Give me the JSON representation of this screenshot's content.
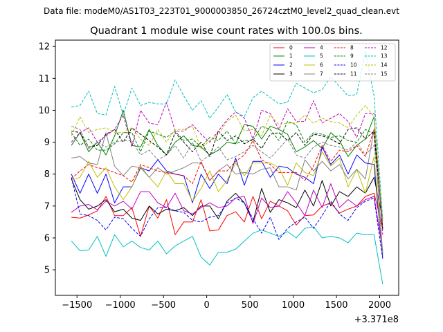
{
  "suptitle": "Data file: modeM0/AS1T03_223T01_9000003850_26724cztM0_level2_quad_clean.evt",
  "chart_data": {
    "type": "line",
    "title": "Quadrant 1 module wise count rates with 100.0s bins.",
    "xlabel": "",
    "ylabel": "",
    "x_offset_label": "+3.371e8",
    "xlim": [
      -1750,
      2220
    ],
    "ylim": [
      4.2,
      12.2
    ],
    "xticks": [
      -1500,
      -1000,
      -500,
      0,
      500,
      1000,
      1500,
      2000
    ],
    "xtick_labels": [
      "−1500",
      "−1000",
      "−500",
      "0",
      "500",
      "1000",
      "1500",
      "2000"
    ],
    "yticks": [
      5,
      6,
      7,
      8,
      9,
      10,
      11,
      12
    ],
    "ytick_labels": [
      "5",
      "6",
      "7",
      "8",
      "9",
      "10",
      "11",
      "12"
    ],
    "grid": false,
    "legend_position": "top-right",
    "x": [
      -1565,
      -1465,
      -1365,
      -1265,
      -1165,
      -1065,
      -965,
      -865,
      -765,
      -665,
      -565,
      -465,
      -365,
      -265,
      -165,
      -65,
      35,
      135,
      235,
      335,
      435,
      535,
      635,
      735,
      835,
      935,
      1035,
      1135,
      1235,
      1335,
      1435,
      1535,
      1635,
      1735,
      1835,
      1935,
      2035
    ],
    "series": [
      {
        "name": "0",
        "color": "#ff0000",
        "dash": "solid",
        "values": [
          6.65,
          6.62,
          6.72,
          6.85,
          7.3,
          6.7,
          6.7,
          6.95,
          6.05,
          7.0,
          6.62,
          7.2,
          6.1,
          6.5,
          6.5,
          7.2,
          6.22,
          6.25,
          6.7,
          6.82,
          6.5,
          7.3,
          6.6,
          7.15,
          7.0,
          6.85,
          6.4,
          6.7,
          6.72,
          7.0,
          7.1,
          6.78,
          6.9,
          7.0,
          7.3,
          7.4,
          6.3
        ]
      },
      {
        "name": "1",
        "color": "#008000",
        "dash": "solid",
        "values": [
          8.9,
          9.3,
          8.7,
          9.0,
          8.6,
          9.2,
          10.0,
          8.9,
          8.85,
          9.4,
          8.9,
          8.6,
          9.0,
          9.2,
          8.9,
          8.85,
          8.6,
          8.75,
          9.0,
          8.95,
          9.55,
          9.5,
          9.1,
          9.5,
          9.4,
          9.25,
          8.7,
          8.85,
          9.05,
          8.8,
          9.3,
          9.05,
          8.55,
          8.9,
          9.1,
          9.8,
          6.3
        ]
      },
      {
        "name": "2",
        "color": "#0000ff",
        "dash": "solid",
        "values": [
          8.0,
          7.4,
          8.0,
          7.4,
          8.0,
          7.1,
          7.6,
          7.6,
          8.2,
          8.1,
          8.45,
          8.1,
          8.0,
          7.95,
          7.1,
          8.0,
          7.55,
          8.0,
          7.7,
          8.5,
          7.65,
          8.4,
          8.4,
          7.9,
          8.25,
          8.2,
          8.0,
          7.9,
          7.7,
          8.85,
          8.3,
          8.6,
          8.0,
          8.6,
          8.35,
          8.3,
          5.4
        ]
      },
      {
        "name": "3",
        "color": "#000000",
        "dash": "solid",
        "values": [
          7.85,
          7.2,
          6.9,
          7.0,
          7.2,
          6.82,
          6.9,
          6.62,
          6.55,
          7.0,
          6.75,
          6.9,
          6.85,
          6.95,
          6.7,
          7.0,
          7.0,
          6.6,
          7.15,
          7.4,
          7.1,
          6.5,
          7.55,
          6.8,
          7.2,
          7.1,
          6.95,
          7.5,
          7.0,
          7.8,
          7.0,
          7.45,
          7.3,
          7.6,
          7.4,
          7.9,
          6.6
        ]
      },
      {
        "name": "4",
        "color": "#bf00bf",
        "dash": "solid",
        "values": [
          6.8,
          7.0,
          7.05,
          6.88,
          7.15,
          7.0,
          7.15,
          6.9,
          7.45,
          7.45,
          7.1,
          6.95,
          7.4,
          6.85,
          6.75,
          6.95,
          7.1,
          6.95,
          7.0,
          7.25,
          7.3,
          6.45,
          7.25,
          6.95,
          7.0,
          7.45,
          7.1,
          6.7,
          7.5,
          6.95,
          7.7,
          6.95,
          7.2,
          7.0,
          7.2,
          7.3,
          5.6
        ]
      },
      {
        "name": "5",
        "color": "#00bfbf",
        "dash": "solid",
        "values": [
          5.9,
          5.6,
          5.62,
          6.05,
          5.42,
          6.1,
          5.72,
          5.9,
          5.7,
          5.62,
          5.9,
          5.5,
          5.75,
          5.9,
          6.05,
          5.4,
          5.15,
          5.55,
          5.55,
          5.65,
          5.9,
          6.15,
          6.25,
          6.15,
          6.05,
          6.2,
          6.0,
          6.3,
          6.35,
          6.0,
          6.05,
          6.0,
          5.85,
          6.15,
          6.1,
          6.1,
          4.55
        ]
      },
      {
        "name": "6",
        "color": "#bfbf00",
        "dash": "solid",
        "values": [
          7.8,
          7.9,
          8.4,
          7.9,
          8.2,
          7.6,
          7.2,
          7.6,
          8.25,
          7.9,
          7.6,
          8.1,
          7.7,
          7.7,
          7.15,
          7.55,
          8.1,
          7.45,
          7.8,
          8.35,
          7.95,
          8.35,
          8.35,
          8.35,
          8.2,
          7.65,
          8.35,
          8.05,
          7.95,
          8.7,
          8.25,
          8.5,
          7.6,
          8.15,
          7.4,
          8.55,
          5.5
        ]
      },
      {
        "name": "7",
        "color": "#808080",
        "dash": "solid",
        "values": [
          8.5,
          8.55,
          8.35,
          8.3,
          9.3,
          8.25,
          7.95,
          8.25,
          8.2,
          7.9,
          8.2,
          8.0,
          8.1,
          8.2,
          8.35,
          8.35,
          7.8,
          8.1,
          8.3,
          8.0,
          8.05,
          8.0,
          8.15,
          8.2,
          7.6,
          7.6,
          7.5,
          8.45,
          8.1,
          8.4,
          8.1,
          8.3,
          7.85,
          8.15,
          7.85,
          9.4,
          5.5
        ]
      },
      {
        "name": "8",
        "color": "#ff0000",
        "dash": "dashed",
        "values": [
          7.85,
          8.1,
          8.3,
          8.2,
          8.15,
          8.05,
          7.95,
          7.75,
          8.3,
          8.2,
          8.1,
          8.05,
          8.0,
          7.95,
          7.7,
          8.4,
          7.8,
          8.1,
          8.1,
          8.4,
          8.6,
          9.05,
          8.45,
          8.3,
          8.05,
          8.05,
          8.05,
          7.8,
          8.25,
          8.9,
          8.4,
          8.75,
          8.7,
          8.9,
          8.55,
          9.4,
          6.3
        ]
      },
      {
        "name": "9",
        "color": "#008000",
        "dash": "dashed",
        "values": [
          9.3,
          8.9,
          9.1,
          8.75,
          8.75,
          8.95,
          9.3,
          9.3,
          8.7,
          9.35,
          9.25,
          9.15,
          9.35,
          9.05,
          9.1,
          8.85,
          9.15,
          9.05,
          9.35,
          8.95,
          9.05,
          9.05,
          9.5,
          9.4,
          9.05,
          9.65,
          9.55,
          9.0,
          9.3,
          9.25,
          9.15,
          9.2,
          9.05,
          9.0,
          9.4,
          9.25,
          6.5
        ]
      },
      {
        "name": "10",
        "color": "#0000ff",
        "dash": "dashed",
        "values": [
          7.9,
          6.75,
          6.7,
          6.55,
          6.25,
          6.65,
          6.6,
          6.3,
          6.05,
          6.6,
          6.95,
          6.95,
          6.85,
          6.8,
          6.55,
          6.5,
          6.65,
          6.7,
          7.1,
          7.25,
          7.1,
          6.6,
          6.15,
          6.65,
          5.95,
          6.3,
          6.5,
          6.65,
          6.3,
          6.7,
          7.15,
          6.75,
          6.55,
          6.95,
          7.15,
          7.25,
          5.35
        ]
      },
      {
        "name": "11",
        "color": "#000000",
        "dash": "dashed",
        "values": [
          9.35,
          9.3,
          8.85,
          8.9,
          9.25,
          9.4,
          9.0,
          9.45,
          9.25,
          9.05,
          8.85,
          8.6,
          9.3,
          9.0,
          8.7,
          9.0,
          8.55,
          9.35,
          9.05,
          9.2,
          8.95,
          9.1,
          8.8,
          9.25,
          9.3,
          9.05,
          9.3,
          8.9,
          9.25,
          9.2,
          9.1,
          8.95,
          9.4,
          9.45,
          9.1,
          9.35,
          6.25
        ]
      },
      {
        "name": "12",
        "color": "#bf00bf",
        "dash": "dashed",
        "values": [
          9.0,
          9.3,
          9.45,
          9.0,
          9.2,
          9.4,
          9.85,
          8.85,
          10.0,
          9.6,
          9.55,
          10.25,
          9.35,
          9.35,
          9.55,
          9.25,
          9.0,
          9.35,
          9.7,
          9.95,
          9.75,
          9.1,
          10.0,
          9.9,
          9.4,
          10.05,
          9.65,
          9.65,
          10.3,
          9.6,
          9.75,
          9.9,
          9.65,
          9.15,
          9.9,
          9.9,
          6.1
        ]
      },
      {
        "name": "13",
        "color": "#00bfbf",
        "dash": "dashed",
        "values": [
          10.1,
          10.15,
          10.6,
          9.9,
          9.85,
          10.75,
          9.85,
          10.7,
          10.15,
          10.25,
          10.2,
          10.2,
          10.95,
          10.45,
          10.0,
          10.3,
          9.75,
          10.1,
          10.5,
          9.95,
          9.8,
          10.4,
          10.6,
          10.4,
          10.2,
          10.25,
          10.85,
          10.7,
          10.55,
          10.65,
          11.05,
          10.75,
          10.45,
          10.5,
          11.85,
          10.45,
          6.6
        ]
      },
      {
        "name": "14",
        "color": "#bfbf00",
        "dash": "dashed",
        "values": [
          9.2,
          9.8,
          9.3,
          9.4,
          9.45,
          9.3,
          9.3,
          9.45,
          9.1,
          8.9,
          9.4,
          9.0,
          9.4,
          9.4,
          9.5,
          8.8,
          9.05,
          9.25,
          9.65,
          9.85,
          9.35,
          9.4,
          9.2,
          9.85,
          9.55,
          9.6,
          9.6,
          9.85,
          9.6,
          9.75,
          9.65,
          9.6,
          9.45,
          9.85,
          10.15,
          9.8,
          6.55
        ]
      },
      {
        "name": "15",
        "color": "#808080",
        "dash": "dashed",
        "values": [
          9.5,
          9.4,
          8.8,
          9.0,
          8.85,
          9.0,
          9.05,
          9.05,
          8.6,
          8.75,
          8.45,
          8.6,
          8.9,
          8.5,
          9.0,
          8.4,
          8.6,
          8.85,
          8.45,
          8.55,
          8.7,
          8.9,
          8.7,
          8.5,
          8.8,
          9.1,
          8.6,
          8.5,
          8.85,
          9.0,
          8.9,
          8.85,
          8.75,
          9.0,
          8.6,
          8.9,
          6.5
        ]
      }
    ]
  }
}
